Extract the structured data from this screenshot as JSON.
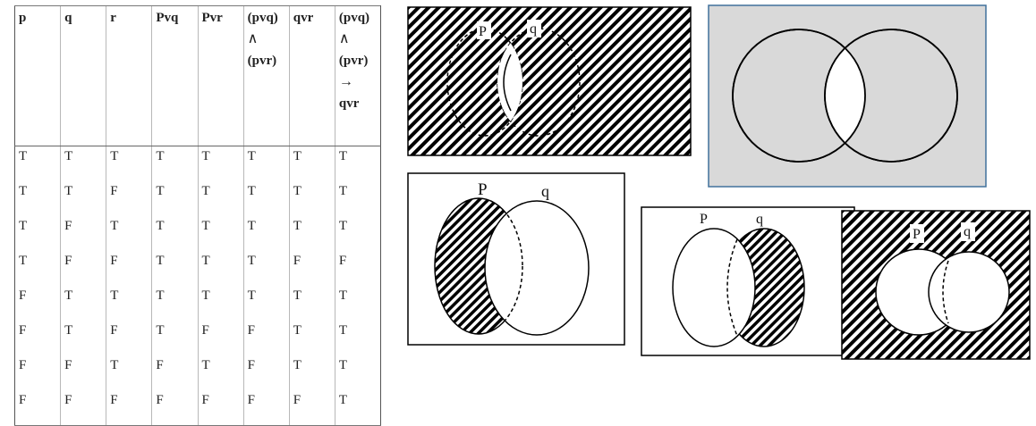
{
  "truth_table": {
    "headers": [
      {
        "lines": [
          "p"
        ]
      },
      {
        "lines": [
          "q"
        ]
      },
      {
        "lines": [
          "r"
        ]
      },
      {
        "lines": [
          "Pvq"
        ]
      },
      {
        "lines": [
          "Pvr"
        ]
      },
      {
        "lines": [
          "(pvq)",
          "∧",
          "(pvr)"
        ]
      },
      {
        "lines": [
          "qvr"
        ]
      },
      {
        "lines": [
          "(pvq)",
          "∧",
          "(pvr)",
          "→",
          "qvr"
        ]
      }
    ],
    "rows": [
      [
        "T",
        "T",
        "T",
        "T",
        "T",
        "T",
        "T",
        "T"
      ],
      [
        "T",
        "T",
        "F",
        "T",
        "T",
        "T",
        "T",
        "T"
      ],
      [
        "T",
        "F",
        "T",
        "T",
        "T",
        "T",
        "T",
        "T"
      ],
      [
        "T",
        "F",
        "F",
        "T",
        "T",
        "T",
        "F",
        "F"
      ],
      [
        "F",
        "T",
        "T",
        "T",
        "T",
        "T",
        "T",
        "T"
      ],
      [
        "F",
        "T",
        "F",
        "T",
        "F",
        "F",
        "T",
        "T"
      ],
      [
        "F",
        "F",
        "T",
        "F",
        "T",
        "F",
        "T",
        "T"
      ],
      [
        "F",
        "F",
        "F",
        "F",
        "F",
        "F",
        "F",
        "T"
      ]
    ]
  },
  "diagrams": {
    "d1": {
      "label_p": "P",
      "label_q": "q",
      "shading": "outside and symmetric difference hatched; intersection white"
    },
    "d2": {
      "background_color": "#d9d9d9",
      "border_color": "#41719c"
    },
    "d3": {
      "label_p": "P",
      "label_q": "q"
    },
    "d4": {
      "label_p": "P",
      "label_q": "q"
    },
    "d5": {
      "label_p": "P",
      "label_q": "q"
    }
  }
}
